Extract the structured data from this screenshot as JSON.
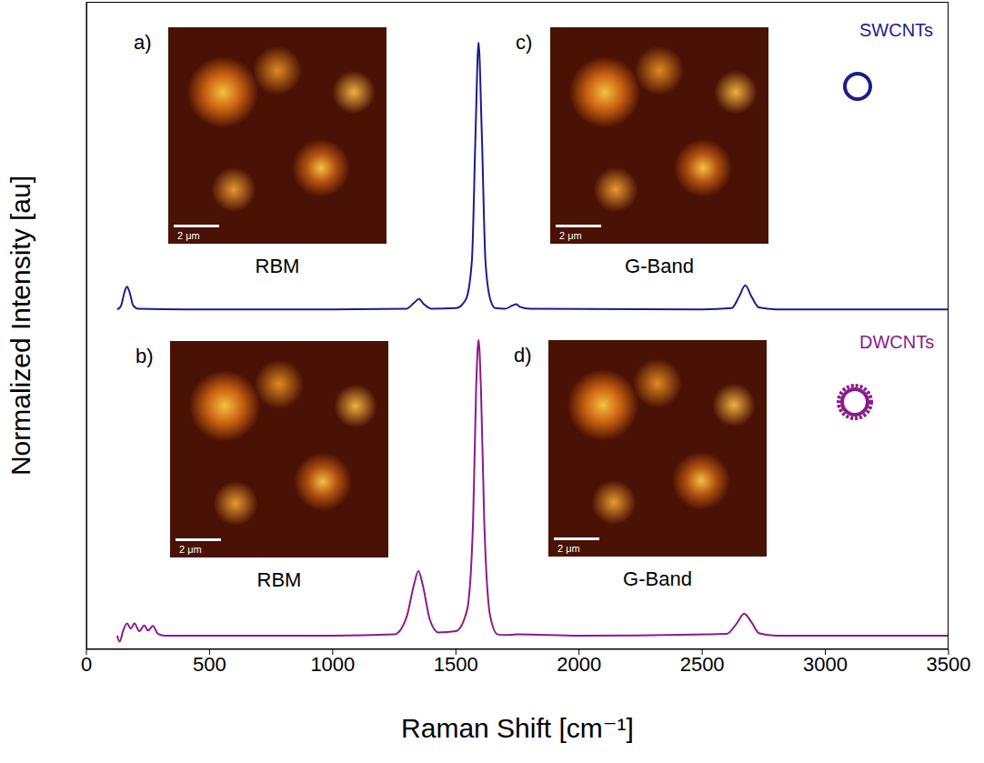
{
  "chart_data": {
    "type": "line",
    "x_label": "Raman Shift [cm⁻¹]",
    "y_label": "Normalized Intensity [au]",
    "xlim": [
      0,
      3500
    ],
    "xticks": [
      0,
      500,
      1000,
      1500,
      2000,
      2500,
      3000,
      3500
    ],
    "ylim": [
      0,
      1
    ],
    "tick_labels": "x",
    "grid": false,
    "series": [
      {
        "name": "SWCNTs",
        "color": "#1c1c8c",
        "x": [
          125,
          140,
          155,
          165,
          175,
          190,
          210,
          400,
          1000,
          1300,
          1330,
          1350,
          1370,
          1400,
          1500,
          1540,
          1565,
          1580,
          1592,
          1605,
          1620,
          1640,
          1660,
          1700,
          1730,
          1745,
          1760,
          1800,
          2500,
          2620,
          2650,
          2675,
          2700,
          2730,
          2800,
          3500
        ],
        "values": [
          0.525,
          0.53,
          0.552,
          0.56,
          0.552,
          0.531,
          0.526,
          0.525,
          0.525,
          0.526,
          0.535,
          0.541,
          0.533,
          0.526,
          0.527,
          0.54,
          0.6,
          0.8,
          0.937,
          0.8,
          0.6,
          0.54,
          0.527,
          0.526,
          0.531,
          0.533,
          0.529,
          0.526,
          0.525,
          0.527,
          0.545,
          0.562,
          0.545,
          0.528,
          0.525,
          0.525
        ]
      },
      {
        "name": "DWCNTs",
        "color": "#8b1a8b",
        "x": [
          125,
          135,
          150,
          165,
          180,
          195,
          215,
          235,
          250,
          270,
          290,
          320,
          1000,
          1250,
          1300,
          1330,
          1348,
          1365,
          1395,
          1430,
          1500,
          1545,
          1570,
          1582,
          1592,
          1602,
          1615,
          1640,
          1670,
          1700,
          1750,
          2000,
          2600,
          2640,
          2670,
          2700,
          2730,
          2800,
          3500
        ],
        "values": [
          0.021,
          0.012,
          0.03,
          0.04,
          0.032,
          0.04,
          0.028,
          0.037,
          0.029,
          0.036,
          0.024,
          0.021,
          0.021,
          0.023,
          0.05,
          0.1,
          0.121,
          0.1,
          0.045,
          0.026,
          0.028,
          0.06,
          0.2,
          0.4,
          0.478,
          0.4,
          0.2,
          0.05,
          0.023,
          0.022,
          0.023,
          0.021,
          0.024,
          0.04,
          0.055,
          0.042,
          0.025,
          0.021,
          0.021
        ]
      }
    ],
    "insets": [
      {
        "label": "a)",
        "title": "RBM",
        "scale_bar": "2 μm",
        "sample": "SWCNTs"
      },
      {
        "label": "b)",
        "title": "RBM",
        "scale_bar": "2 μm",
        "sample": "DWCNTs"
      },
      {
        "label": "c)",
        "title": "G-Band",
        "scale_bar": "2 μm",
        "sample": "SWCNTs"
      },
      {
        "label": "d)",
        "title": "G-Band",
        "scale_bar": "2 μm",
        "sample": "DWCNTs"
      }
    ]
  }
}
